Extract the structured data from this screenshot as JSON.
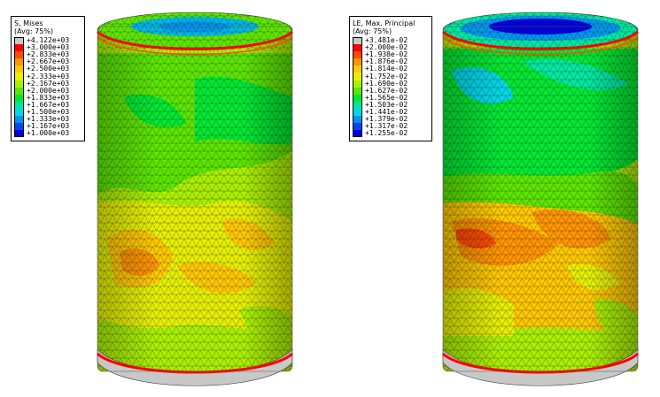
{
  "plots": [
    {
      "legend": {
        "title": "S, Mises",
        "subtitle": "(Avg: 75%)",
        "entries": [
          {
            "label": "+4.122e+03",
            "color": "#c8c8c8"
          },
          {
            "label": "+3.000e+03",
            "color": "#ff0000"
          },
          {
            "label": "+2.833e+03",
            "color": "#ff4a00"
          },
          {
            "label": "+2.667e+03",
            "color": "#ff9400"
          },
          {
            "label": "+2.500e+03",
            "color": "#ffc800"
          },
          {
            "label": "+2.333e+03",
            "color": "#e6f000"
          },
          {
            "label": "+2.167e+03",
            "color": "#aaf000"
          },
          {
            "label": "+2.000e+03",
            "color": "#5ce600"
          },
          {
            "label": "+1.833e+03",
            "color": "#00e832"
          },
          {
            "label": "+1.667e+03",
            "color": "#00e8a0"
          },
          {
            "label": "+1.500e+03",
            "color": "#00d8e8"
          },
          {
            "label": "+1.333e+03",
            "color": "#0096f0"
          },
          {
            "label": "+1.167e+03",
            "color": "#0046f5"
          },
          {
            "label": "+1.000e+03",
            "color": "#0000e0"
          }
        ]
      }
    },
    {
      "legend": {
        "title": "LE, Max. Principal",
        "subtitle": "(Avg: 75%)",
        "entries": [
          {
            "label": "+3.481e-02",
            "color": "#c8c8c8"
          },
          {
            "label": "+2.000e-02",
            "color": "#ff0000"
          },
          {
            "label": "+1.938e-02",
            "color": "#ff4a00"
          },
          {
            "label": "+1.876e-02",
            "color": "#ff9400"
          },
          {
            "label": "+1.814e-02",
            "color": "#ffc800"
          },
          {
            "label": "+1.752e-02",
            "color": "#e6f000"
          },
          {
            "label": "+1.690e-02",
            "color": "#aaf000"
          },
          {
            "label": "+1.627e-02",
            "color": "#5ce600"
          },
          {
            "label": "+1.565e-02",
            "color": "#00e832"
          },
          {
            "label": "+1.503e-02",
            "color": "#00e8a0"
          },
          {
            "label": "+1.441e-02",
            "color": "#00d8e8"
          },
          {
            "label": "+1.379e-02",
            "color": "#0096f0"
          },
          {
            "label": "+1.317e-02",
            "color": "#0046f5"
          },
          {
            "label": "+1.255e-02",
            "color": "#0000e0"
          }
        ]
      }
    }
  ]
}
